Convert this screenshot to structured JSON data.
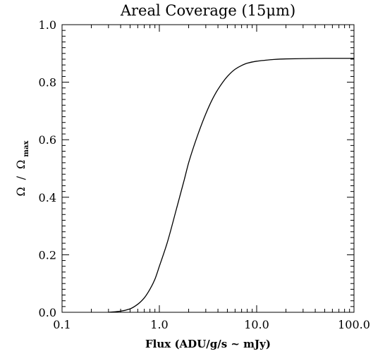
{
  "chart_data": {
    "type": "line",
    "title": "Areal Coverage (15μm)",
    "xlabel": "Flux (ADU/g/s ~ mJy)",
    "ylabel": {
      "numerator": "Ω",
      "separator": "/",
      "denominator": "Ω",
      "denominator_subscript": "max"
    },
    "xscale": "log",
    "xlim": [
      0.1,
      100.0
    ],
    "ylim": [
      0.0,
      1.0
    ],
    "x_ticks": [
      0.1,
      1.0,
      10.0,
      100.0
    ],
    "x_tick_labels": [
      "0.1",
      "1.0",
      "10.0",
      "100.0"
    ],
    "y_ticks": [
      0.0,
      0.2,
      0.4,
      0.6,
      0.8,
      1.0
    ],
    "y_tick_labels": [
      "0.0",
      "0.2",
      "0.4",
      "0.6",
      "0.8",
      "1.0"
    ],
    "grid": false,
    "series": [
      {
        "x": [
          0.3,
          0.4,
          0.5,
          0.6,
          0.7,
          0.8,
          0.9,
          1.0,
          1.2,
          1.5,
          1.8,
          2.0,
          2.5,
          3.0,
          3.5,
          4.0,
          5.0,
          6.0,
          7.0,
          8.0,
          10.0,
          12.0,
          15.0,
          20.0,
          30.0,
          50.0,
          100.0
        ],
        "y": [
          0.0,
          0.004,
          0.012,
          0.028,
          0.05,
          0.08,
          0.115,
          0.16,
          0.24,
          0.36,
          0.46,
          0.52,
          0.62,
          0.69,
          0.74,
          0.775,
          0.82,
          0.845,
          0.858,
          0.866,
          0.873,
          0.876,
          0.879,
          0.881,
          0.882,
          0.883,
          0.883
        ]
      }
    ]
  }
}
